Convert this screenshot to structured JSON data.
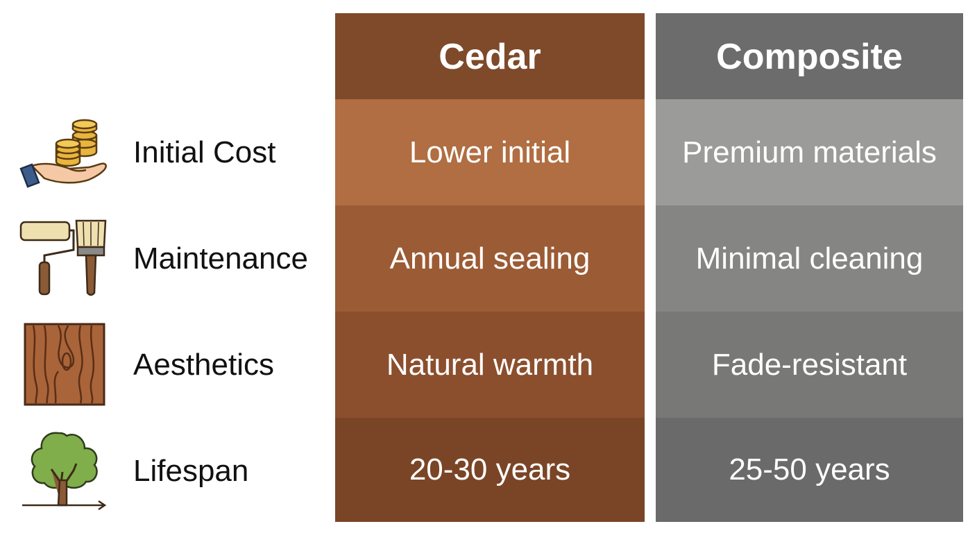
{
  "columns": [
    {
      "key": "cedar",
      "header": "Cedar",
      "values": [
        "Lower initial",
        "Annual sealing",
        "Natural warmth",
        "20-30 years"
      ]
    },
    {
      "key": "composite",
      "header": "Composite",
      "values": [
        "Premium materials",
        "Minimal cleaning",
        "Fade-resistant",
        "25-50 years"
      ]
    }
  ],
  "rows": [
    {
      "label": "Initial Cost",
      "icon": "coins-in-hand-icon"
    },
    {
      "label": "Maintenance",
      "icon": "paint-roller-and-brush-icon"
    },
    {
      "label": "Aesthetics",
      "icon": "wood-grain-icon"
    },
    {
      "label": "Lifespan",
      "icon": "tree-icon"
    }
  ],
  "colors": {
    "cedar_header": "#7E4A2A",
    "cedar_rows": [
      "#B06E42",
      "#9B5B34",
      "#8B4F2E",
      "#7A4526"
    ],
    "composite_header": "#6C6C6C",
    "composite_rows": [
      "#9B9B99",
      "#858583",
      "#787877",
      "#6A6A6A"
    ],
    "label_text": "#111111"
  }
}
